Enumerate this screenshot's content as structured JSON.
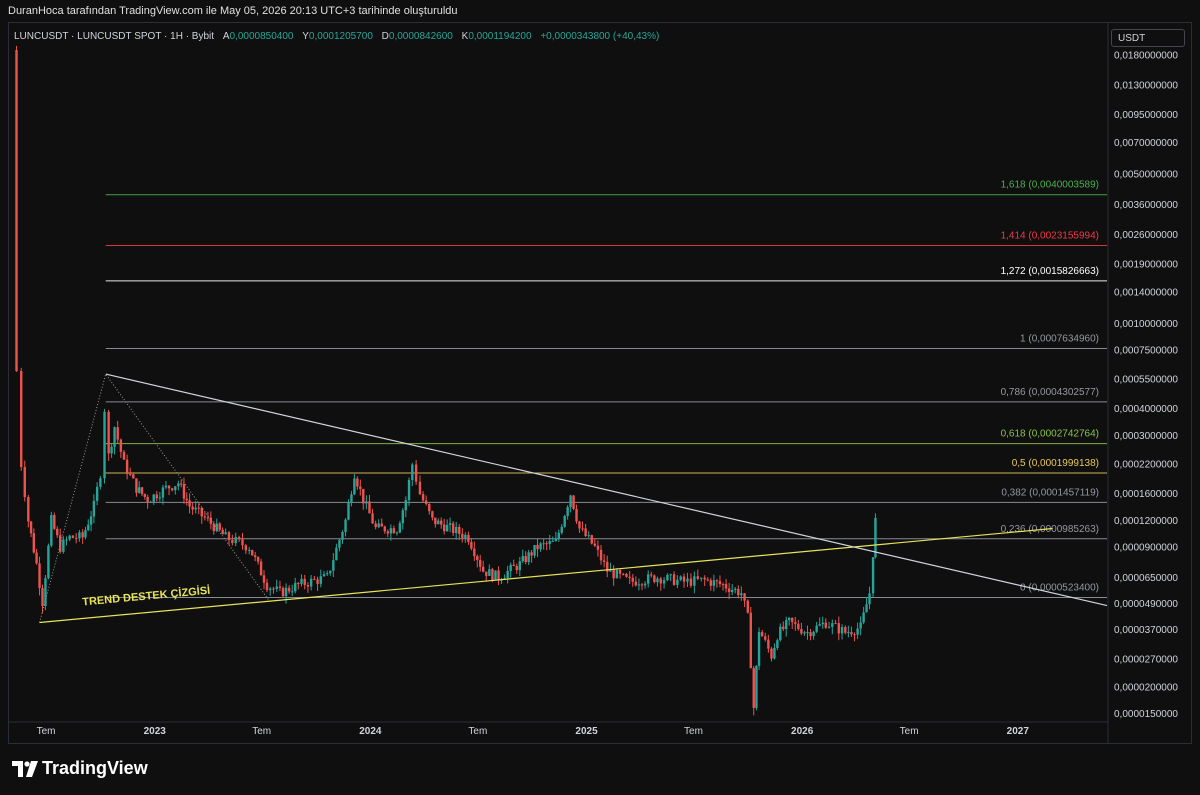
{
  "header": {
    "attribution": "DuranHoca tarafından TradingView.com ile May 05, 2026 20:13 UTC+3 tarihinde oluşturuldu"
  },
  "legend": {
    "symbol": "LUNCUSDT · LUNCUSDT SPOT · 1H · Bybit",
    "open_label": "A",
    "open": "0,0000850400",
    "high_label": "Y",
    "high": "0,0001205700",
    "low_label": "D",
    "low": "0,0000842600",
    "close_label": "K",
    "close": "0,0001194200",
    "change": "+0,0000343800 (+40,43%)"
  },
  "price_scale": {
    "unit": "USDT"
  },
  "brand": {
    "name": "TradingView",
    "logo_icon": "tradingview-logo-icon"
  },
  "colors": {
    "up": "#26a69a",
    "down": "#ef5350",
    "trend": "#e8e35a",
    "resistance": "#d1d4dc"
  },
  "chart_data": {
    "type": "candlestick",
    "scale": "log",
    "ylim": [
      1.4e-05,
      0.019
    ],
    "y_ticks": [
      {
        "value": 0.018,
        "label": "0,0180000000"
      },
      {
        "value": 0.013,
        "label": "0,0130000000"
      },
      {
        "value": 0.0095,
        "label": "0,0095000000"
      },
      {
        "value": 0.007,
        "label": "0,0070000000"
      },
      {
        "value": 0.005,
        "label": "0,0050000000"
      },
      {
        "value": 0.0036,
        "label": "0,0036000000"
      },
      {
        "value": 0.0026,
        "label": "0,0026000000"
      },
      {
        "value": 0.0019,
        "label": "0,0019000000"
      },
      {
        "value": 0.0014,
        "label": "0,0014000000"
      },
      {
        "value": 0.001,
        "label": "0,0010000000"
      },
      {
        "value": 0.00075,
        "label": "0,0007500000"
      },
      {
        "value": 0.00055,
        "label": "0,0005500000"
      },
      {
        "value": 0.0004,
        "label": "0,0004000000"
      },
      {
        "value": 0.0003,
        "label": "0,0003000000"
      },
      {
        "value": 0.00022,
        "label": "0,0002200000"
      },
      {
        "value": 0.00016,
        "label": "0,0001600000"
      },
      {
        "value": 0.00012,
        "label": "0,0001200000"
      },
      {
        "value": 9e-05,
        "label": "0,0000900000"
      },
      {
        "value": 6.5e-05,
        "label": "0,0000650000"
      },
      {
        "value": 4.9e-05,
        "label": "0,0000490000"
      },
      {
        "value": 3.7e-05,
        "label": "0,0000370000"
      },
      {
        "value": 2.7e-05,
        "label": "0,0000270000"
      },
      {
        "value": 2e-05,
        "label": "0,0000200000"
      },
      {
        "value": 1.5e-05,
        "label": "0,0000150000"
      }
    ],
    "xlim": [
      "2022-05-01",
      "2027-06-01"
    ],
    "x_ticks": [
      {
        "date": "2022-07-01",
        "label": "Tem"
      },
      {
        "date": "2023-01-01",
        "label": "2023"
      },
      {
        "date": "2023-07-01",
        "label": "Tem"
      },
      {
        "date": "2024-01-01",
        "label": "2024"
      },
      {
        "date": "2024-07-01",
        "label": "Tem"
      },
      {
        "date": "2025-01-01",
        "label": "2025"
      },
      {
        "date": "2025-07-01",
        "label": "Tem"
      },
      {
        "date": "2026-01-01",
        "label": "2026"
      },
      {
        "date": "2026-07-01",
        "label": "Tem"
      },
      {
        "date": "2027-01-01",
        "label": "2027"
      }
    ],
    "fib_levels": [
      {
        "label": "1,618 (0,0040003589)",
        "value": 0.0040003589,
        "color": "#4caf50"
      },
      {
        "label": "1,414 (0,0023155994)",
        "value": 0.0023155994,
        "color": "#f23645"
      },
      {
        "label": "1,272 (0,0015826663)",
        "value": 0.0015826663,
        "color": "#ffffff"
      },
      {
        "label": "1 (0,0007634960)",
        "value": 0.000763496,
        "color": "#9598a1"
      },
      {
        "label": "0,786 (0,0004302577)",
        "value": 0.0004302577,
        "color": "#9598a1"
      },
      {
        "label": "0,618 (0,0002742764)",
        "value": 0.0002742764,
        "color": "#8bc34a"
      },
      {
        "label": "0,5 (0,0001999138)",
        "value": 0.0001999138,
        "color": "#e8c95a"
      },
      {
        "label": "0,382 (0,0001457119)",
        "value": 0.0001457119,
        "color": "#9598a1"
      },
      {
        "label": "0,236 (0,0000985263)",
        "value": 9.85263e-05,
        "color": "#9598a1"
      },
      {
        "label": "0 (0,0000523400)",
        "value": 5.234e-05,
        "color": "#9598a1"
      }
    ],
    "fib_start": "2022-10-10",
    "trendlines": [
      {
        "name": "TREND DESTEK ÇİZGİSİ",
        "from": {
          "date": "2022-06-20",
          "value": 4e-05
        },
        "to": {
          "date": "2027-03-01",
          "value": 0.00011
        },
        "color": "#e8e35a"
      },
      {
        "name": "",
        "from": {
          "date": "2022-10-10",
          "value": 0.00058
        },
        "to": {
          "date": "2027-06-01",
          "value": 4.8e-05
        },
        "color": "#d1d4dc"
      }
    ],
    "dotted_pattern": [
      {
        "date": "2022-06-20",
        "value": 4e-05
      },
      {
        "date": "2022-10-10",
        "value": 0.00058
      },
      {
        "date": "2023-07-15",
        "value": 5e-05
      }
    ],
    "annotations": [
      {
        "text": "TREND DESTEK ÇİZGİSİ",
        "date": "2022-09-01",
        "value": 4.8e-05
      }
    ],
    "price_path": [
      [
        "2022-05-10",
        0.019
      ],
      [
        "2022-05-12",
        0.0006
      ],
      [
        "2022-05-20",
        0.00022
      ],
      [
        "2022-06-01",
        0.00012
      ],
      [
        "2022-06-15",
        7.5e-05
      ],
      [
        "2022-06-25",
        5e-05
      ],
      [
        "2022-07-10",
        0.00012
      ],
      [
        "2022-07-25",
        9e-05
      ],
      [
        "2022-08-10",
        0.0001
      ],
      [
        "2022-09-01",
        0.0001
      ],
      [
        "2022-09-20",
        0.00014
      ],
      [
        "2022-10-01",
        0.0002
      ],
      [
        "2022-10-08",
        0.0004
      ],
      [
        "2022-10-15",
        0.00024
      ],
      [
        "2022-10-25",
        0.00033
      ],
      [
        "2022-11-10",
        0.00022
      ],
      [
        "2022-12-01",
        0.00017
      ],
      [
        "2022-12-20",
        0.00015
      ],
      [
        "2023-01-20",
        0.00017
      ],
      [
        "2023-02-10",
        0.00018
      ],
      [
        "2023-03-01",
        0.00014
      ],
      [
        "2023-04-01",
        0.00012
      ],
      [
        "2023-05-01",
        0.0001
      ],
      [
        "2023-06-10",
        9e-05
      ],
      [
        "2023-07-10",
        6e-05
      ],
      [
        "2023-08-01",
        5.5e-05
      ],
      [
        "2023-09-01",
        6e-05
      ],
      [
        "2023-10-20",
        6.5e-05
      ],
      [
        "2023-11-20",
        0.00012
      ],
      [
        "2023-12-05",
        0.0002
      ],
      [
        "2023-12-20",
        0.00015
      ],
      [
        "2024-01-10",
        0.00011
      ],
      [
        "2024-02-15",
        0.00011
      ],
      [
        "2024-03-01",
        0.00015
      ],
      [
        "2024-03-12",
        0.00022
      ],
      [
        "2024-03-25",
        0.00016
      ],
      [
        "2024-04-15",
        0.00012
      ],
      [
        "2024-05-15",
        0.00011
      ],
      [
        "2024-06-15",
        0.0001
      ],
      [
        "2024-07-10",
        7e-05
      ],
      [
        "2024-08-05",
        6.5e-05
      ],
      [
        "2024-09-10",
        7.5e-05
      ],
      [
        "2024-10-10",
        9e-05
      ],
      [
        "2024-11-10",
        9.5e-05
      ],
      [
        "2024-12-05",
        0.00016
      ],
      [
        "2024-12-20",
        0.00011
      ],
      [
        "2025-01-15",
        9e-05
      ],
      [
        "2025-02-05",
        7e-05
      ],
      [
        "2025-03-15",
        6.2e-05
      ],
      [
        "2025-05-01",
        6.5e-05
      ],
      [
        "2025-06-15",
        6.2e-05
      ],
      [
        "2025-07-20",
        6.3e-05
      ],
      [
        "2025-08-20",
        6e-05
      ],
      [
        "2025-09-20",
        5.5e-05
      ],
      [
        "2025-10-01",
        4.2e-05
      ],
      [
        "2025-10-11",
        1.6e-05
      ],
      [
        "2025-10-20",
        3.7e-05
      ],
      [
        "2025-11-10",
        2.8e-05
      ],
      [
        "2025-11-20",
        3.5e-05
      ],
      [
        "2025-12-10",
        4e-05
      ],
      [
        "2026-01-10",
        3.6e-05
      ],
      [
        "2026-02-10",
        4e-05
      ],
      [
        "2026-03-15",
        3.6e-05
      ],
      [
        "2026-04-10",
        3.8e-05
      ],
      [
        "2026-04-25",
        5.5e-05
      ],
      [
        "2026-05-01",
        8.5e-05
      ],
      [
        "2026-05-05",
        0.0001194
      ]
    ]
  }
}
